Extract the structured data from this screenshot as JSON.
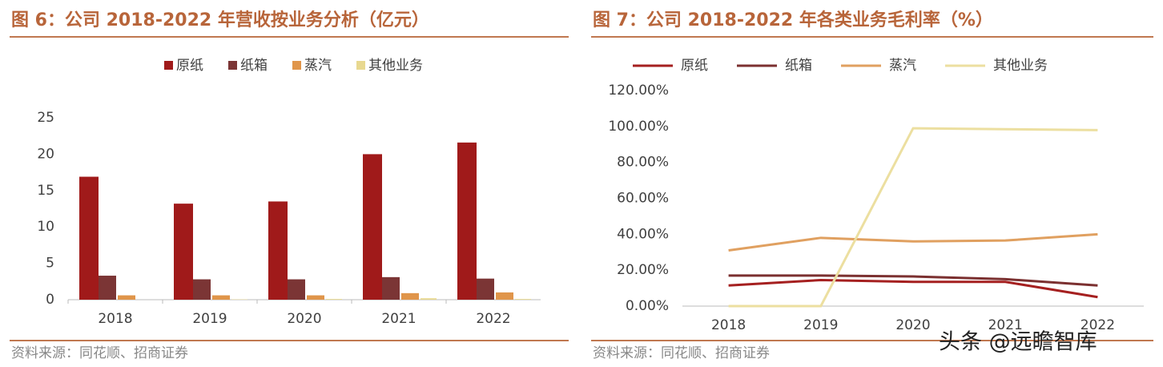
{
  "chart_data": [
    {
      "type": "bar",
      "title": "图 6：公司 2018-2022 年营收按业务分析（亿元）",
      "source": "资料来源：同花顺、招商证券",
      "categories": [
        "2018",
        "2019",
        "2020",
        "2021",
        "2022"
      ],
      "series": [
        {
          "name": "原纸",
          "color": "#a01a1a",
          "values": [
            16.9,
            13.2,
            13.5,
            20.0,
            21.6
          ]
        },
        {
          "name": "纸箱",
          "color": "#7b3535",
          "values": [
            3.3,
            2.8,
            2.8,
            3.1,
            2.9
          ]
        },
        {
          "name": "蒸汽",
          "color": "#e0954a",
          "values": [
            0.6,
            0.6,
            0.6,
            0.9,
            1.0
          ]
        },
        {
          "name": "其他业务",
          "color": "#e8d890",
          "values": [
            0,
            0.05,
            0.1,
            0.2,
            0.1
          ]
        }
      ],
      "ylim": [
        0,
        25
      ],
      "yticks": [
        0,
        5,
        10,
        15,
        20,
        25
      ],
      "grid": false,
      "legend": "top"
    },
    {
      "type": "line",
      "title": "图 7：公司 2018-2022 年各类业务毛利率（%）",
      "source": "资料来源：同花顺、招商证券",
      "categories": [
        "2018",
        "2019",
        "2020",
        "2021",
        "2022"
      ],
      "series": [
        {
          "name": "原纸",
          "color": "#a52020",
          "values": [
            11.5,
            14.5,
            13.5,
            13.5,
            5
          ]
        },
        {
          "name": "纸箱",
          "color": "#7b3030",
          "values": [
            17,
            17,
            16.5,
            15,
            11.5
          ]
        },
        {
          "name": "蒸汽",
          "color": "#e0a060",
          "values": [
            31,
            38,
            36,
            36.5,
            40
          ]
        },
        {
          "name": "其他业务",
          "color": "#ecdfa0",
          "values": [
            0,
            0,
            99,
            98.5,
            98
          ]
        }
      ],
      "ylim": [
        0,
        120
      ],
      "yticks": [
        {
          "value": 0,
          "label": "0.00%"
        },
        {
          "value": 20,
          "label": "20.00%"
        },
        {
          "value": 40,
          "label": "40.00%"
        },
        {
          "value": 60,
          "label": "60.00%"
        },
        {
          "value": 80,
          "label": "80.00%"
        },
        {
          "value": 100,
          "label": "100.00%"
        },
        {
          "value": 120,
          "label": "120.00%"
        }
      ],
      "grid": false,
      "legend": "top"
    }
  ],
  "watermark": "头条 @远瞻智库"
}
